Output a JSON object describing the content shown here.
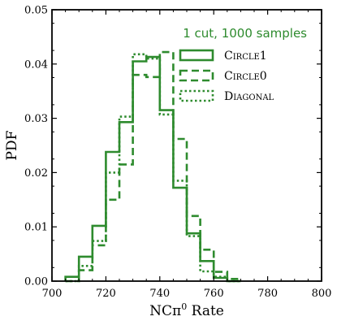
{
  "chart_data": {
    "type": "step-histogram",
    "xlabel_main": "NCπ",
    "xlabel_sup": "0",
    "xlabel_tail": " Rate",
    "ylabel": "PDF",
    "xlim": [
      700,
      800
    ],
    "ylim": [
      0,
      0.05
    ],
    "xticks": [
      700,
      720,
      740,
      760,
      780,
      800
    ],
    "yticks": [
      0.0,
      0.01,
      0.02,
      0.03,
      0.04,
      0.05
    ],
    "xtick_labels": [
      "700",
      "720",
      "740",
      "760",
      "780",
      "800"
    ],
    "ytick_labels": [
      "0.00",
      "0.01",
      "0.02",
      "0.03",
      "0.04",
      "0.05"
    ],
    "grid": false,
    "legend_title": "1 cut, 1000 samples",
    "legend_position": "top-right",
    "color": "#2e8b2e",
    "bin_edges": [
      705,
      710,
      715,
      720,
      725,
      730,
      735,
      740,
      745,
      750,
      755,
      760,
      765,
      770
    ],
    "series": [
      {
        "name": "Circle1",
        "style": "solid",
        "values": [
          0.0008,
          0.0045,
          0.0102,
          0.0238,
          0.0293,
          0.0405,
          0.0413,
          0.0315,
          0.0172,
          0.0088,
          0.0037,
          0.0006,
          0.0
        ]
      },
      {
        "name": "Circle0",
        "style": "dashed",
        "values": [
          0.0,
          0.002,
          0.0066,
          0.015,
          0.0215,
          0.038,
          0.0376,
          0.0422,
          0.0262,
          0.012,
          0.0058,
          0.0017,
          0.0004
        ]
      },
      {
        "name": "Diagonal",
        "style": "dotted",
        "values": [
          0.0,
          0.0028,
          0.0074,
          0.02,
          0.0303,
          0.0418,
          0.041,
          0.0307,
          0.0185,
          0.0083,
          0.0018,
          0.0008,
          0.0
        ]
      }
    ]
  }
}
